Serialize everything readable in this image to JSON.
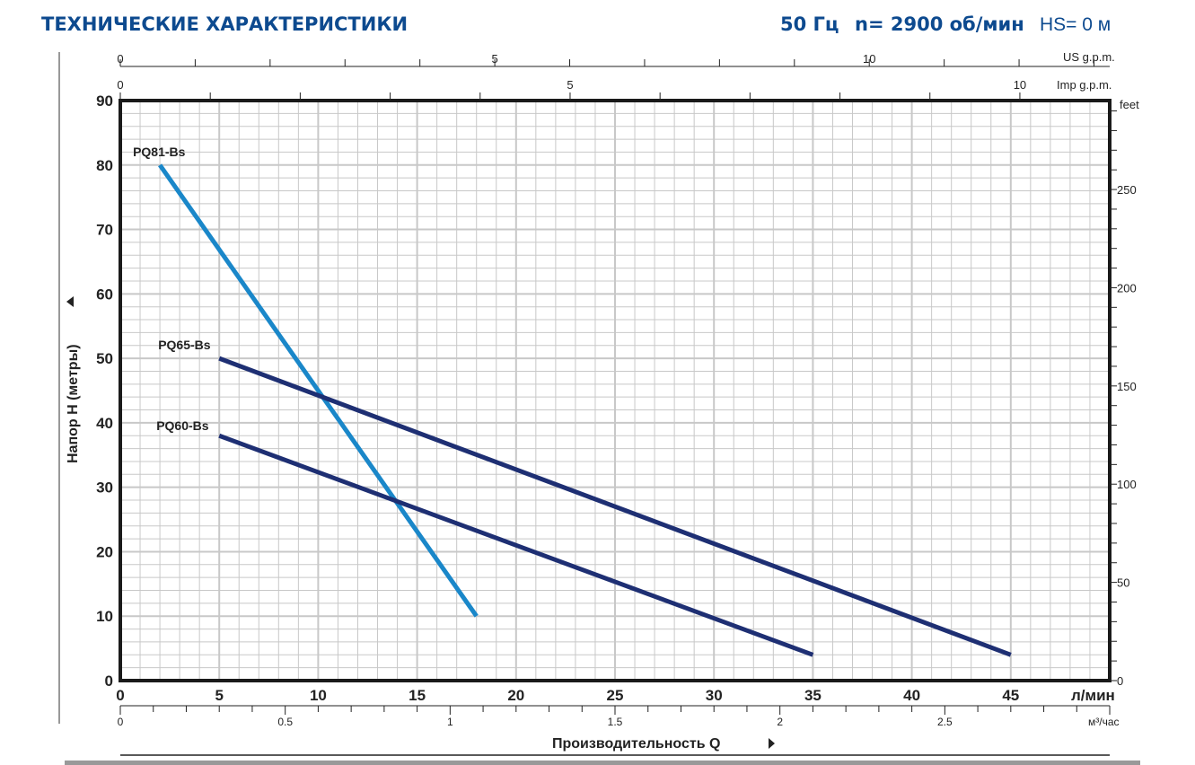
{
  "header": {
    "title": "ТЕХНИЧЕСКИЕ ХАРАКТЕРИСТИКИ",
    "freq": "50 Гц",
    "speed": "n= 2900 об/мин",
    "hs": "HS= 0 м"
  },
  "chart_data": {
    "type": "line",
    "xlabel": "Производительность Q",
    "ylabel": "Напор H (метры)",
    "x_unit": "л/мин",
    "xlim": [
      0,
      50
    ],
    "ylim": [
      0,
      90
    ],
    "x_ticks": [
      0,
      5,
      10,
      15,
      20,
      25,
      30,
      35,
      40,
      45
    ],
    "y_ticks": [
      0,
      10,
      20,
      30,
      40,
      50,
      60,
      70,
      80,
      90
    ],
    "grid": true,
    "secondary_axes": {
      "us_gpm": {
        "label": "US g.p.m.",
        "ticks": [
          "0",
          "5",
          "10"
        ]
      },
      "imp_gpm": {
        "label": "Imp g.p.m.",
        "ticks": [
          "0",
          "5",
          "10"
        ]
      },
      "m3h": {
        "label": "м³/час",
        "ticks": [
          "0",
          "0.5",
          "1",
          "1.5",
          "2",
          "2.5"
        ]
      },
      "feet": {
        "label": "feet",
        "ticks": [
          "0",
          "50",
          "100",
          "150",
          "200",
          "250"
        ]
      }
    },
    "series": [
      {
        "name": "PQ81-Bs",
        "color": "#1a87c9",
        "x": [
          2,
          18
        ],
        "y": [
          80,
          10
        ]
      },
      {
        "name": "PQ65-Bs",
        "color": "#1e2f73",
        "x": [
          5,
          45
        ],
        "y": [
          50,
          4
        ]
      },
      {
        "name": "PQ60-Bs",
        "color": "#1e2f73",
        "x": [
          5,
          35
        ],
        "y": [
          38,
          4
        ]
      }
    ]
  }
}
